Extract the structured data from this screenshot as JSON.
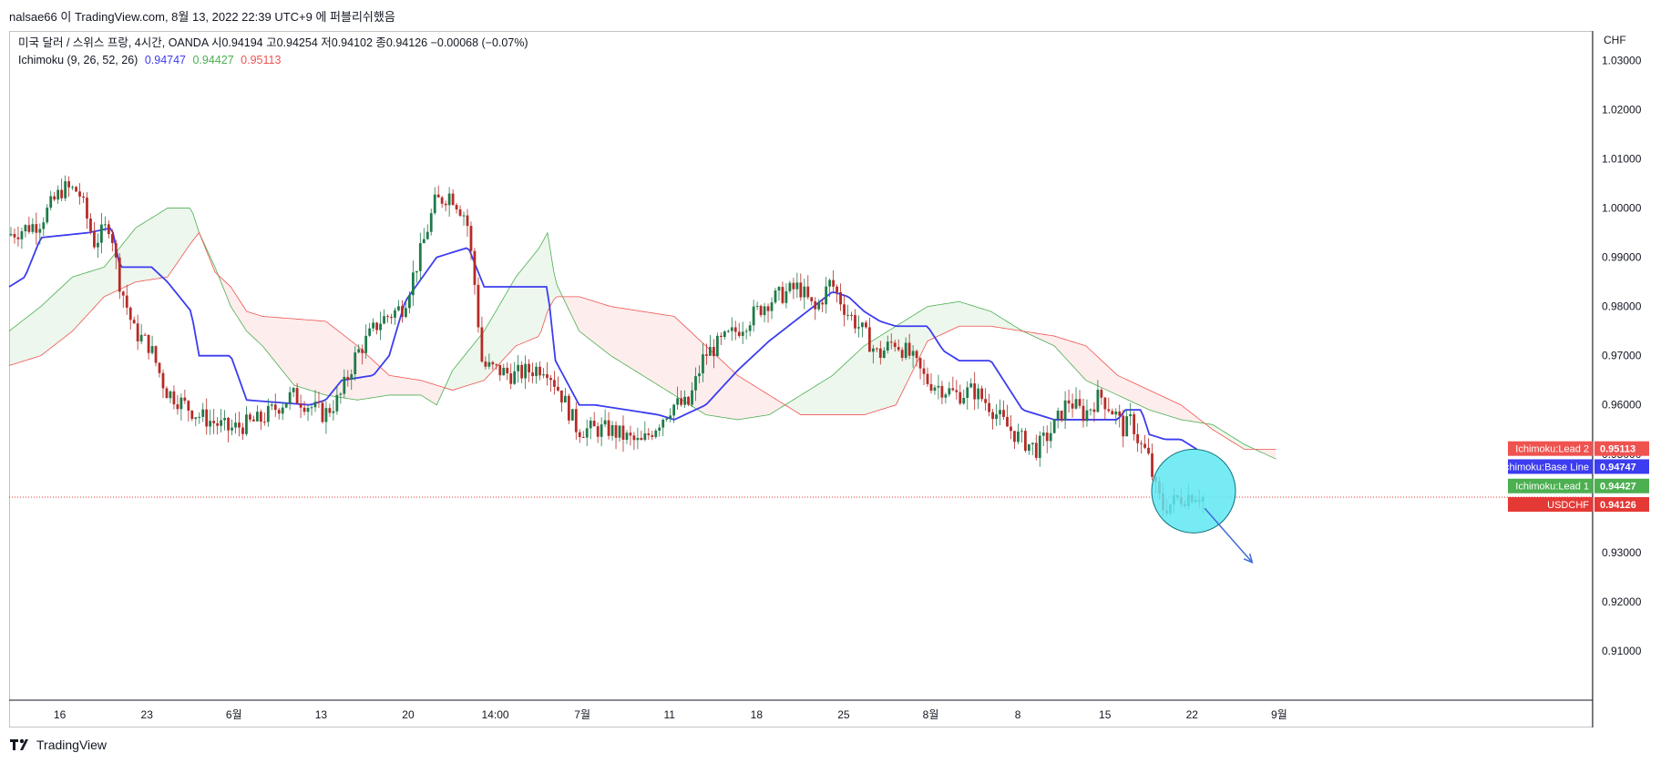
{
  "caption": "nalsae66 이 TradingView.com, 8월 13, 2022 22:39 UTC+9 에 퍼블리쉬했음",
  "legend": {
    "symbol_line": "미국 달러 / 스위스 프랑, 4시간, OANDA  시0.94194  고0.94254  저0.94102  종0.94126  −0.00068 (−0.07%)",
    "indicator_name": "Ichimoku (9, 26, 52, 26)",
    "base_value": "0.94747",
    "lead1_value": "0.94427",
    "lead2_value": "0.95113"
  },
  "footer": {
    "brand": "TradingView"
  },
  "colors": {
    "up_candle": "#1f7a4a",
    "down_candle": "#b52b27",
    "base_line": "#3c3cf0",
    "lead1": "#4caf50",
    "lead2": "#ef5350",
    "cloud_bull": "rgba(76,175,80,0.10)",
    "cloud_bear": "rgba(239,83,80,0.10)",
    "highlight_circle": "#5ee8f2",
    "arrow": "#3d6bd6"
  },
  "chart_data": {
    "type": "candlestick",
    "symbol": "USDCHF",
    "currency": "CHF",
    "y_axis_unit": "CHF",
    "ylim": [
      0.9,
      1.036
    ],
    "y_ticks": [
      "1.03000",
      "1.02000",
      "1.01000",
      "1.00000",
      "0.99000",
      "0.98000",
      "0.97000",
      "0.96000",
      "0.95000",
      "0.94000",
      "0.93000",
      "0.92000",
      "0.91000"
    ],
    "x_ticks": [
      "16",
      "23",
      "6월",
      "13",
      "20",
      "14:00",
      "7월",
      "11",
      "18",
      "25",
      "8월",
      "8",
      "15",
      "22",
      "9월"
    ],
    "last_close": 0.94126,
    "price_path": [
      [
        0,
        0.9945
      ],
      [
        0.02,
        0.997
      ],
      [
        0.035,
        1.004
      ],
      [
        0.045,
        1.0035
      ],
      [
        0.055,
        0.993
      ],
      [
        0.065,
        0.997
      ],
      [
        0.07,
        0.986
      ],
      [
        0.08,
        0.975
      ],
      [
        0.09,
        0.972
      ],
      [
        0.1,
        0.963
      ],
      [
        0.12,
        0.958
      ],
      [
        0.14,
        0.955
      ],
      [
        0.16,
        0.957
      ],
      [
        0.18,
        0.962
      ],
      [
        0.2,
        0.958
      ],
      [
        0.21,
        0.9615
      ],
      [
        0.22,
        0.97
      ],
      [
        0.235,
        0.977
      ],
      [
        0.25,
        0.98
      ],
      [
        0.26,
        0.99
      ],
      [
        0.27,
        1.001
      ],
      [
        0.28,
        1.003
      ],
      [
        0.29,
        0.998
      ],
      [
        0.295,
        0.985
      ],
      [
        0.3,
        0.968
      ],
      [
        0.31,
        0.967
      ],
      [
        0.32,
        0.966
      ],
      [
        0.34,
        0.968
      ],
      [
        0.35,
        0.962
      ],
      [
        0.36,
        0.955
      ],
      [
        0.38,
        0.955
      ],
      [
        0.4,
        0.952
      ],
      [
        0.41,
        0.956
      ],
      [
        0.42,
        0.96
      ],
      [
        0.43,
        0.96
      ],
      [
        0.44,
        0.97
      ],
      [
        0.46,
        0.975
      ],
      [
        0.48,
        0.981
      ],
      [
        0.5,
        0.984
      ],
      [
        0.51,
        0.979
      ],
      [
        0.52,
        0.985
      ],
      [
        0.53,
        0.979
      ],
      [
        0.54,
        0.975
      ],
      [
        0.55,
        0.97
      ],
      [
        0.56,
        0.973
      ],
      [
        0.57,
        0.97
      ],
      [
        0.58,
        0.965
      ],
      [
        0.6,
        0.962
      ],
      [
        0.61,
        0.963
      ],
      [
        0.62,
        0.96
      ],
      [
        0.63,
        0.956
      ],
      [
        0.64,
        0.953
      ],
      [
        0.65,
        0.951
      ],
      [
        0.66,
        0.955
      ],
      [
        0.67,
        0.961
      ],
      [
        0.68,
        0.958
      ],
      [
        0.69,
        0.962
      ],
      [
        0.7,
        0.958
      ],
      [
        0.705,
        0.955
      ],
      [
        0.71,
        0.957
      ],
      [
        0.715,
        0.952
      ],
      [
        0.72,
        0.95
      ],
      [
        0.725,
        0.943
      ],
      [
        0.73,
        0.939
      ],
      [
        0.74,
        0.941
      ],
      [
        0.75,
        0.942
      ],
      [
        0.755,
        0.9413
      ]
    ],
    "series": [
      {
        "name": "Ichimoku:Base Line",
        "last": 0.94747
      },
      {
        "name": "Ichimoku:Lead 1",
        "last": 0.94427
      },
      {
        "name": "Ichimoku:Lead 2",
        "last": 0.95113
      },
      {
        "name": "USDCHF",
        "last": 0.94126
      }
    ],
    "base_path": [
      [
        0,
        0.984
      ],
      [
        0.01,
        0.986
      ],
      [
        0.02,
        0.994
      ],
      [
        0.05,
        0.995
      ],
      [
        0.065,
        0.996
      ],
      [
        0.07,
        0.988
      ],
      [
        0.09,
        0.988
      ],
      [
        0.1,
        0.985
      ],
      [
        0.115,
        0.979
      ],
      [
        0.12,
        0.97
      ],
      [
        0.14,
        0.97
      ],
      [
        0.15,
        0.961
      ],
      [
        0.19,
        0.96
      ],
      [
        0.2,
        0.961
      ],
      [
        0.21,
        0.965
      ],
      [
        0.23,
        0.966
      ],
      [
        0.24,
        0.97
      ],
      [
        0.25,
        0.981
      ],
      [
        0.27,
        0.99
      ],
      [
        0.29,
        0.992
      ],
      [
        0.3,
        0.984
      ],
      [
        0.34,
        0.984
      ],
      [
        0.345,
        0.969
      ],
      [
        0.36,
        0.96
      ],
      [
        0.37,
        0.96
      ],
      [
        0.41,
        0.958
      ],
      [
        0.42,
        0.957
      ],
      [
        0.44,
        0.96
      ],
      [
        0.46,
        0.967
      ],
      [
        0.48,
        0.973
      ],
      [
        0.5,
        0.978
      ],
      [
        0.52,
        0.983
      ],
      [
        0.53,
        0.982
      ],
      [
        0.54,
        0.979
      ],
      [
        0.55,
        0.977
      ],
      [
        0.56,
        0.976
      ],
      [
        0.58,
        0.976
      ],
      [
        0.59,
        0.971
      ],
      [
        0.6,
        0.969
      ],
      [
        0.62,
        0.969
      ],
      [
        0.63,
        0.964
      ],
      [
        0.64,
        0.959
      ],
      [
        0.66,
        0.957
      ],
      [
        0.67,
        0.957
      ],
      [
        0.7,
        0.957
      ],
      [
        0.705,
        0.959
      ],
      [
        0.715,
        0.959
      ],
      [
        0.72,
        0.954
      ],
      [
        0.73,
        0.953
      ],
      [
        0.74,
        0.953
      ],
      [
        0.75,
        0.951
      ]
    ],
    "lead1_path": [
      [
        0,
        0.975
      ],
      [
        0.02,
        0.98
      ],
      [
        0.04,
        0.986
      ],
      [
        0.06,
        0.988
      ],
      [
        0.08,
        0.996
      ],
      [
        0.1,
        1.0
      ],
      [
        0.115,
        1.0
      ],
      [
        0.12,
        0.995
      ],
      [
        0.13,
        0.988
      ],
      [
        0.14,
        0.98
      ],
      [
        0.15,
        0.975
      ],
      [
        0.16,
        0.972
      ],
      [
        0.18,
        0.964
      ],
      [
        0.2,
        0.962
      ],
      [
        0.22,
        0.961
      ],
      [
        0.24,
        0.962
      ],
      [
        0.26,
        0.962
      ],
      [
        0.27,
        0.96
      ],
      [
        0.28,
        0.967
      ],
      [
        0.3,
        0.975
      ],
      [
        0.32,
        0.986
      ],
      [
        0.335,
        0.992
      ],
      [
        0.34,
        0.995
      ],
      [
        0.345,
        0.985
      ],
      [
        0.36,
        0.975
      ],
      [
        0.38,
        0.97
      ],
      [
        0.4,
        0.966
      ],
      [
        0.42,
        0.962
      ],
      [
        0.44,
        0.958
      ],
      [
        0.46,
        0.957
      ],
      [
        0.48,
        0.958
      ],
      [
        0.5,
        0.962
      ],
      [
        0.52,
        0.966
      ],
      [
        0.54,
        0.972
      ],
      [
        0.56,
        0.976
      ],
      [
        0.58,
        0.98
      ],
      [
        0.6,
        0.981
      ],
      [
        0.62,
        0.979
      ],
      [
        0.64,
        0.975
      ],
      [
        0.66,
        0.972
      ],
      [
        0.68,
        0.965
      ],
      [
        0.7,
        0.962
      ],
      [
        0.72,
        0.959
      ],
      [
        0.74,
        0.957
      ],
      [
        0.76,
        0.956
      ],
      [
        0.77,
        0.954
      ],
      [
        0.78,
        0.952
      ],
      [
        0.8,
        0.949
      ]
    ],
    "lead2_path": [
      [
        0,
        0.968
      ],
      [
        0.02,
        0.97
      ],
      [
        0.04,
        0.975
      ],
      [
        0.06,
        0.982
      ],
      [
        0.08,
        0.985
      ],
      [
        0.1,
        0.986
      ],
      [
        0.115,
        0.993
      ],
      [
        0.12,
        0.995
      ],
      [
        0.13,
        0.987
      ],
      [
        0.14,
        0.984
      ],
      [
        0.15,
        0.979
      ],
      [
        0.16,
        0.978
      ],
      [
        0.2,
        0.977
      ],
      [
        0.22,
        0.972
      ],
      [
        0.24,
        0.966
      ],
      [
        0.26,
        0.965
      ],
      [
        0.28,
        0.963
      ],
      [
        0.3,
        0.965
      ],
      [
        0.32,
        0.972
      ],
      [
        0.335,
        0.974
      ],
      [
        0.34,
        0.979
      ],
      [
        0.345,
        0.982
      ],
      [
        0.36,
        0.982
      ],
      [
        0.38,
        0.98
      ],
      [
        0.4,
        0.979
      ],
      [
        0.42,
        0.978
      ],
      [
        0.44,
        0.972
      ],
      [
        0.46,
        0.966
      ],
      [
        0.48,
        0.962
      ],
      [
        0.5,
        0.958
      ],
      [
        0.52,
        0.958
      ],
      [
        0.54,
        0.958
      ],
      [
        0.56,
        0.96
      ],
      [
        0.58,
        0.973
      ],
      [
        0.6,
        0.976
      ],
      [
        0.62,
        0.976
      ],
      [
        0.64,
        0.975
      ],
      [
        0.66,
        0.974
      ],
      [
        0.68,
        0.972
      ],
      [
        0.7,
        0.966
      ],
      [
        0.72,
        0.963
      ],
      [
        0.74,
        0.96
      ],
      [
        0.76,
        0.955
      ],
      [
        0.78,
        0.951
      ],
      [
        0.8,
        0.951
      ]
    ],
    "annotations": [
      {
        "type": "circle",
        "label": "highlight",
        "x": 0.748,
        "y": 0.9425
      },
      {
        "type": "arrow",
        "from": [
          0.755,
          0.939
        ],
        "to": [
          0.785,
          0.928
        ]
      }
    ],
    "grid": false,
    "legend_position": "top-left"
  }
}
